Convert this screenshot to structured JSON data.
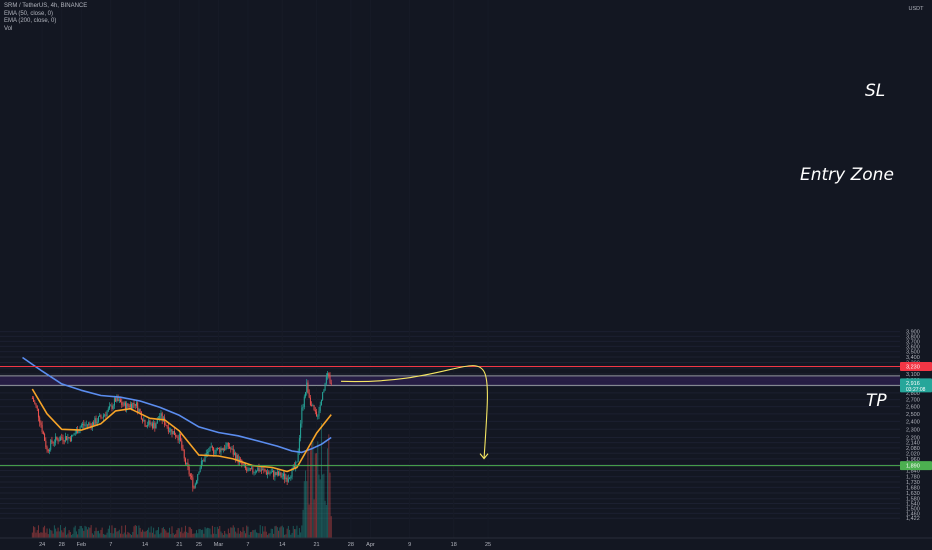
{
  "legend": {
    "symbol": "SRM / TetherUS, 4h, BINANCE",
    "ema50": "EMA (50, close, 0)",
    "ema200": "EMA (200, close, 0)",
    "vol": "Vol"
  },
  "price_axis": {
    "currency": "USDT",
    "ticks": [
      "3,900",
      "3,800",
      "3,700",
      "3,600",
      "3,500",
      "3,400",
      "3,300",
      "3,200",
      "3,100",
      "3,000",
      "2,900",
      "2,800",
      "2,700",
      "2,600",
      "2,500",
      "2,400",
      "2,300",
      "2,200",
      "2,140",
      "2,080",
      "2,020",
      "1,960",
      "1,900",
      "1,840",
      "1,780",
      "1,730",
      "1,680",
      "1,630",
      "1,580",
      "1,540",
      "1,500",
      "1,460",
      "1,422"
    ],
    "sl_label": "3,230",
    "last_label": "2,916",
    "last_timer": "03:27:08",
    "tp_label": "1,890"
  },
  "time_axis": {
    "ticks": [
      "24",
      "28",
      "Feb",
      "7",
      "14",
      "21",
      "25",
      "Mar",
      "7",
      "14",
      "21",
      "28",
      "Apr",
      "9",
      "18",
      "25"
    ]
  },
  "annotations": {
    "sl": "SL",
    "entry": "Entry Zone",
    "tp": "TP"
  },
  "colors": {
    "background": "#131722",
    "bull": "#26a69a",
    "bear": "#ef5350",
    "ema50": "#f7a428",
    "ema200": "#5b8def",
    "sl_line": "#f23645",
    "tp_line": "#4caf50",
    "zone_fill": "#2a1f4a",
    "arrow": "#f5e663"
  },
  "chart_data": {
    "type": "candlestick",
    "symbol": "SRM/USDT",
    "interval": "4h",
    "exchange": "BINANCE",
    "ylim": [
      1.422,
      3.9
    ],
    "levels": {
      "sl": 3.23,
      "entry_zone": [
        2.916,
        3.07
      ],
      "tp": 1.89,
      "last": 2.916
    },
    "close_path": [
      {
        "x": "Jan 22",
        "y": 2.72
      },
      {
        "x": "Jan 23",
        "y": 2.55
      },
      {
        "x": "Jan 24",
        "y": 2.3
      },
      {
        "x": "Jan 25",
        "y": 2.05
      },
      {
        "x": "Jan 26",
        "y": 2.15
      },
      {
        "x": "Jan 28",
        "y": 2.2
      },
      {
        "x": "Jan 30",
        "y": 2.2
      },
      {
        "x": "Feb 1",
        "y": 2.35
      },
      {
        "x": "Feb 3",
        "y": 2.36
      },
      {
        "x": "Feb 5",
        "y": 2.45
      },
      {
        "x": "Feb 7",
        "y": 2.58
      },
      {
        "x": "Feb 8",
        "y": 2.7
      },
      {
        "x": "Feb 10",
        "y": 2.6
      },
      {
        "x": "Feb 12",
        "y": 2.65
      },
      {
        "x": "Feb 14",
        "y": 2.38
      },
      {
        "x": "Feb 16",
        "y": 2.35
      },
      {
        "x": "Feb 17",
        "y": 2.48
      },
      {
        "x": "Feb 19",
        "y": 2.3
      },
      {
        "x": "Feb 21",
        "y": 2.2
      },
      {
        "x": "Feb 22",
        "y": 1.95
      },
      {
        "x": "Feb 24",
        "y": 1.68
      },
      {
        "x": "Feb 25",
        "y": 1.86
      },
      {
        "x": "Feb 27",
        "y": 2.05
      },
      {
        "x": "Mar 1",
        "y": 2.06
      },
      {
        "x": "Mar 3",
        "y": 2.1
      },
      {
        "x": "Mar 5",
        "y": 1.95
      },
      {
        "x": "Mar 7",
        "y": 1.82
      },
      {
        "x": "Mar 9",
        "y": 1.86
      },
      {
        "x": "Mar 11",
        "y": 1.82
      },
      {
        "x": "Mar 13",
        "y": 1.8
      },
      {
        "x": "Mar 15",
        "y": 1.77
      },
      {
        "x": "Mar 17",
        "y": 1.9
      },
      {
        "x": "Mar 18",
        "y": 2.55
      },
      {
        "x": "Mar 19",
        "y": 2.92
      },
      {
        "x": "Mar 20",
        "y": 2.6
      },
      {
        "x": "Mar 21",
        "y": 2.45
      },
      {
        "x": "Mar 22",
        "y": 2.7
      },
      {
        "x": "Mar 23",
        "y": 3.1
      },
      {
        "x": "Mar 24",
        "y": 2.916
      }
    ],
    "ema50": [
      {
        "x": "Jan 22",
        "y": 2.86
      },
      {
        "x": "Jan 25",
        "y": 2.5
      },
      {
        "x": "Jan 28",
        "y": 2.3
      },
      {
        "x": "Feb 1",
        "y": 2.29
      },
      {
        "x": "Feb 5",
        "y": 2.37
      },
      {
        "x": "Feb 8",
        "y": 2.54
      },
      {
        "x": "Feb 11",
        "y": 2.57
      },
      {
        "x": "Feb 15",
        "y": 2.44
      },
      {
        "x": "Feb 18",
        "y": 2.42
      },
      {
        "x": "Feb 21",
        "y": 2.28
      },
      {
        "x": "Feb 25",
        "y": 2.0
      },
      {
        "x": "Mar 1",
        "y": 1.99
      },
      {
        "x": "Mar 4",
        "y": 1.96
      },
      {
        "x": "Mar 8",
        "y": 1.89
      },
      {
        "x": "Mar 12",
        "y": 1.87
      },
      {
        "x": "Mar 15",
        "y": 1.83
      },
      {
        "x": "Mar 17",
        "y": 1.87
      },
      {
        "x": "Mar 19",
        "y": 2.05
      },
      {
        "x": "Mar 21",
        "y": 2.25
      },
      {
        "x": "Mar 24",
        "y": 2.49
      }
    ],
    "ema200": [
      {
        "x": "Jan 20",
        "y": 3.39
      },
      {
        "x": "Jan 24",
        "y": 3.15
      },
      {
        "x": "Jan 28",
        "y": 2.94
      },
      {
        "x": "Feb 1",
        "y": 2.84
      },
      {
        "x": "Feb 5",
        "y": 2.76
      },
      {
        "x": "Feb 9",
        "y": 2.735
      },
      {
        "x": "Feb 13",
        "y": 2.68
      },
      {
        "x": "Feb 17",
        "y": 2.59
      },
      {
        "x": "Feb 21",
        "y": 2.48
      },
      {
        "x": "Feb 25",
        "y": 2.33
      },
      {
        "x": "Mar 1",
        "y": 2.26
      },
      {
        "x": "Mar 5",
        "y": 2.22
      },
      {
        "x": "Mar 9",
        "y": 2.16
      },
      {
        "x": "Mar 13",
        "y": 2.1
      },
      {
        "x": "Mar 16",
        "y": 2.045
      },
      {
        "x": "Mar 18",
        "y": 2.03
      },
      {
        "x": "Mar 20",
        "y": 2.07
      },
      {
        "x": "Mar 22",
        "y": 2.12
      },
      {
        "x": "Mar 24",
        "y": 2.2
      }
    ],
    "projection": {
      "from": {
        "x": "Mar 26",
        "y": 2.98
      },
      "to": {
        "x": "Apr 25",
        "y": 1.91
      }
    }
  }
}
